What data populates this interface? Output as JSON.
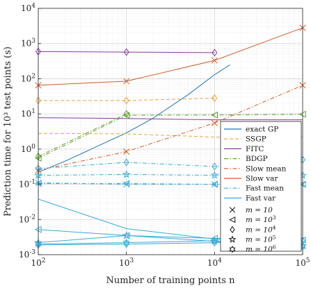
{
  "chart_data": {
    "type": "line",
    "xscale": "log",
    "yscale": "log",
    "xlim": [
      100,
      100000
    ],
    "ylim": [
      0.001,
      10000
    ],
    "grid": true,
    "legend_position": "right",
    "xlabel": "Number of training points n",
    "ylabel": "Prediction time for 10³ test points (s)",
    "x_ticks": [
      {
        "value": 100,
        "base": "10",
        "exp": "2"
      },
      {
        "value": 1000,
        "base": "10",
        "exp": "3"
      },
      {
        "value": 10000,
        "base": "10",
        "exp": "4"
      },
      {
        "value": 100000,
        "base": "10",
        "exp": "5"
      }
    ],
    "y_ticks": [
      {
        "value": 0.001,
        "base": "10",
        "exp": "-3"
      },
      {
        "value": 0.01,
        "base": "10",
        "exp": "-2"
      },
      {
        "value": 0.1,
        "base": "10",
        "exp": "-1"
      },
      {
        "value": 1,
        "base": "10",
        "exp": "0"
      },
      {
        "value": 10,
        "base": "10",
        "exp": "1"
      },
      {
        "value": 100,
        "base": "10",
        "exp": "2"
      },
      {
        "value": 1000,
        "base": "10",
        "exp": "3"
      },
      {
        "value": 10000,
        "base": "10",
        "exp": "4"
      }
    ],
    "series": [
      {
        "name": "exact GP",
        "color": "#1f6fb2",
        "dash": "solid",
        "marker": "none",
        "x": [
          100,
          200,
          500,
          1000,
          2000,
          5000,
          10000,
          15000
        ],
        "y": [
          0.22,
          0.45,
          1.3,
          2.9,
          7.5,
          35,
          130,
          250
        ]
      },
      {
        "name": "SSGP",
        "color": "#e8a33a",
        "dash": "dashed",
        "lines": [
          {
            "marker": "diamond",
            "x": [
              100,
              1000,
              10000
            ],
            "y": [
              24,
              24,
              28
            ]
          },
          {
            "marker": "none",
            "x": [
              100,
              1000,
              10000,
              100000
            ],
            "y": [
              2.8,
              2.7,
              2.2,
              2.2
            ]
          }
        ]
      },
      {
        "name": "FITC",
        "color": "#8a3a9a",
        "dash": "solid",
        "lines": [
          {
            "marker": "diamond",
            "x": [
              100,
              1000,
              10000
            ],
            "y": [
              590,
              570,
              550
            ]
          },
          {
            "marker": "none",
            "x": [
              100,
              1000,
              10000,
              100000
            ],
            "y": [
              7.8,
              7.4,
              6.8,
              6.8
            ]
          }
        ]
      },
      {
        "name": "BDGP",
        "color": "#5fa332",
        "dash": "dashdot",
        "lines": [
          {
            "marker": "triangle",
            "x": [
              100,
              1000,
              10000,
              100000
            ],
            "y": [
              0.55,
              9.2,
              9.3,
              9.8
            ]
          },
          {
            "marker": "diamond",
            "x": [
              100,
              1000
            ],
            "y": [
              0.62,
              10
            ]
          }
        ]
      },
      {
        "name": "Slow mean",
        "color": "#d45a28",
        "dash": "dashdot",
        "lines": [
          {
            "marker": "x",
            "x": [
              100,
              1000,
              10000,
              100000
            ],
            "y": [
              0.25,
              0.85,
              5.5,
              65
            ]
          }
        ]
      },
      {
        "name": "Slow var",
        "color": "#d45a28",
        "dash": "solid",
        "lines": [
          {
            "marker": "x",
            "x": [
              100,
              1000,
              10000,
              100000
            ],
            "y": [
              65,
              85,
              330,
              2800
            ]
          }
        ]
      },
      {
        "name": "Fast mean",
        "color": "#3aaadb",
        "dash": "dashdot",
        "lines": [
          {
            "marker": "diamond",
            "x": [
              100,
              1000,
              10000,
              100000
            ],
            "y": [
              0.28,
              0.42,
              0.32,
              0.5
            ]
          },
          {
            "marker": "star",
            "x": [
              100,
              1000,
              10000,
              100000
            ],
            "y": [
              0.18,
              0.19,
              0.18,
              0.18
            ]
          },
          {
            "marker": "triangle",
            "x": [
              100,
              1000,
              10000,
              100000
            ],
            "y": [
              0.105,
              0.105,
              0.1,
              0.1
            ]
          },
          {
            "marker": "x",
            "x": [
              100,
              1000,
              10000,
              100000
            ],
            "y": [
              0.11,
              0.1,
              0.1,
              0.1
            ]
          }
        ]
      },
      {
        "name": "Fast var",
        "color": "#3aaadb",
        "dash": "solid",
        "lines": [
          {
            "marker": "none",
            "x": [
              100,
              1000,
              10000,
              100000
            ],
            "y": [
              0.038,
              0.0055,
              0.0028,
              0.0025
            ]
          },
          {
            "marker": "triangle",
            "x": [
              100,
              1000,
              10000,
              100000
            ],
            "y": [
              0.0052,
              0.0035,
              0.0029,
              0.0026
            ]
          },
          {
            "marker": "star",
            "x": [
              100,
              1000,
              10000,
              100000
            ],
            "y": [
              0.0022,
              0.0035,
              0.0024,
              0.0018
            ]
          },
          {
            "marker": "hexstar",
            "x": [
              100,
              1000,
              10000,
              100000
            ],
            "y": [
              0.002,
              0.0022,
              0.0025,
              0.0017
            ]
          },
          {
            "marker": "diamond",
            "x": [
              100,
              1000,
              10000,
              100000
            ],
            "y": [
              0.0019,
              0.002,
              0.0022,
              0.0025
            ]
          }
        ]
      }
    ],
    "marker_legend": [
      {
        "marker": "x",
        "label": "m = 10",
        "exp": ""
      },
      {
        "marker": "triangle",
        "label": "m = 10",
        "exp": "3"
      },
      {
        "marker": "diamond",
        "label": "m = 10",
        "exp": "4"
      },
      {
        "marker": "star",
        "label": "m = 10",
        "exp": "5"
      },
      {
        "marker": "hexstar",
        "label": "m = 10",
        "exp": "6"
      }
    ]
  }
}
